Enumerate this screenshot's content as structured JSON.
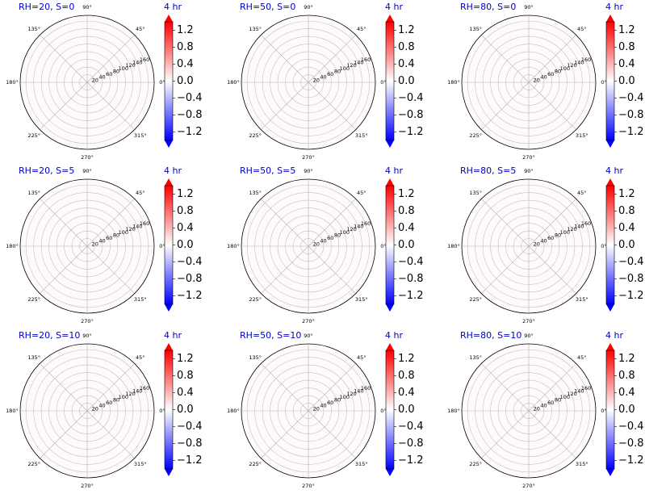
{
  "chart_data": [
    {
      "type": "polar-heatmap",
      "title_left": "RH=20, S=0",
      "title_right": "4 hr"
    },
    {
      "type": "polar-heatmap",
      "title_left": "RH=50, S=0",
      "title_right": "4 hr"
    },
    {
      "type": "polar-heatmap",
      "title_left": "RH=80, S=0",
      "title_right": "4 hr"
    },
    {
      "type": "polar-heatmap",
      "title_left": "RH=20, S=5",
      "title_right": "4 hr"
    },
    {
      "type": "polar-heatmap",
      "title_left": "RH=50, S=5",
      "title_right": "4 hr"
    },
    {
      "type": "polar-heatmap",
      "title_left": "RH=80, S=5",
      "title_right": "4 hr"
    },
    {
      "type": "polar-heatmap",
      "title_left": "RH=20, S=10",
      "title_right": "4 hr"
    },
    {
      "type": "polar-heatmap",
      "title_left": "RH=50, S=10",
      "title_right": "4 hr"
    },
    {
      "type": "polar-heatmap",
      "title_left": "RH=80, S=10",
      "title_right": "4 hr"
    }
  ],
  "angle_ticks": [
    "0°",
    "45°",
    "90°",
    "135°",
    "180°",
    "225°",
    "270°",
    "315°"
  ],
  "radial_ticks": [
    "20",
    "40",
    "60",
    "80",
    "100",
    "120",
    "140",
    "160"
  ],
  "radial_max": 175,
  "colorbar": {
    "ticks": [
      "1.2",
      "0.8",
      "0.4",
      "0.0",
      "−0.4",
      "−0.8",
      "−1.2"
    ],
    "tick_values": [
      1.2,
      0.8,
      0.4,
      0.0,
      -0.4,
      -0.8,
      -1.2
    ],
    "range": [
      -1.4,
      1.4
    ],
    "colormap": "bwr",
    "colors": {
      "max": "#ff0000",
      "mid": "#ffffff",
      "min": "#0000ff"
    }
  },
  "colors": {
    "title": "#0000cc",
    "grid": "#b0b0b0",
    "axes": "#000000"
  }
}
